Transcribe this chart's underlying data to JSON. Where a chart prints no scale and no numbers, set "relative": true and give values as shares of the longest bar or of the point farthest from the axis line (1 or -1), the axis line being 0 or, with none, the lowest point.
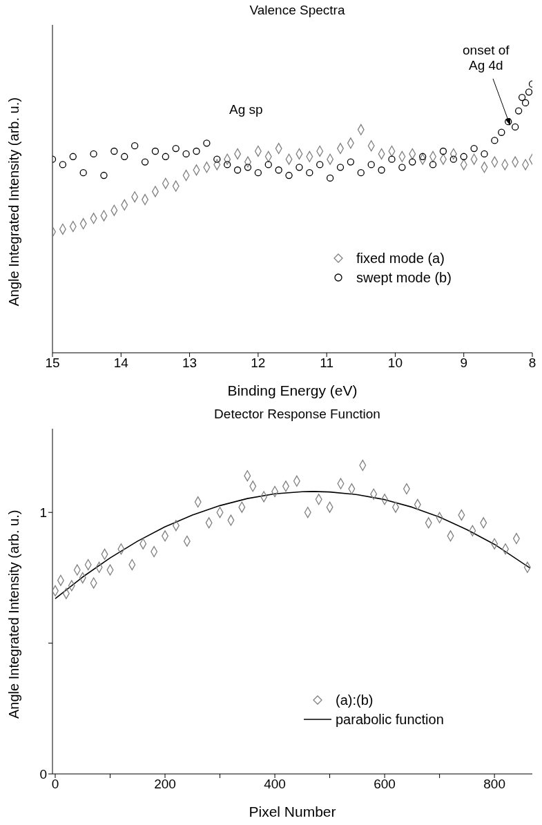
{
  "chart_data": [
    {
      "type": "scatter",
      "title": "Valence Spectra",
      "xlabel": "Binding Energy (eV)",
      "ylabel": "Angle Integrated Intensity (arb. u.)",
      "relative": true,
      "xlim": [
        15,
        8
      ],
      "xticks": [
        15,
        14,
        13,
        12,
        11,
        10,
        9,
        8
      ],
      "legend": "bottom right",
      "annotations": [
        "Ag sp",
        "onset of\nAg 4d"
      ],
      "series": [
        {
          "name": "fixed mode (a)",
          "color": "#808080",
          "marker": "diamond",
          "x": [
            15,
            14.85,
            14.7,
            14.55,
            14.4,
            14.25,
            14.1,
            13.95,
            13.8,
            13.65,
            13.5,
            13.35,
            13.2,
            13.05,
            12.9,
            12.75,
            12.6,
            12.45,
            12.3,
            12.15,
            12,
            11.85,
            11.7,
            11.55,
            11.4,
            11.25,
            11.1,
            10.95,
            10.8,
            10.65,
            10.5,
            10.35,
            10.2,
            10.05,
            9.9,
            9.75,
            9.6,
            9.45,
            9.3,
            9.15,
            9,
            8.85,
            8.7,
            8.55,
            8.4,
            8.25,
            8.1,
            8
          ],
          "values": [
            0.45,
            0.46,
            0.47,
            0.48,
            0.5,
            0.51,
            0.53,
            0.55,
            0.58,
            0.57,
            0.6,
            0.63,
            0.62,
            0.66,
            0.68,
            0.69,
            0.7,
            0.72,
            0.74,
            0.71,
            0.75,
            0.73,
            0.76,
            0.72,
            0.74,
            0.73,
            0.75,
            0.72,
            0.76,
            0.78,
            0.83,
            0.77,
            0.74,
            0.75,
            0.73,
            0.74,
            0.72,
            0.73,
            0.72,
            0.74,
            0.7,
            0.72,
            0.69,
            0.71,
            0.7,
            0.71,
            0.7,
            0.72
          ]
        },
        {
          "name": "swept mode (b)",
          "color": "#000000",
          "marker": "circle",
          "x": [
            15,
            14.85,
            14.7,
            14.55,
            14.4,
            14.25,
            14.1,
            13.95,
            13.8,
            13.65,
            13.5,
            13.35,
            13.2,
            13.05,
            12.9,
            12.75,
            12.6,
            12.45,
            12.3,
            12.15,
            12,
            11.85,
            11.7,
            11.55,
            11.4,
            11.25,
            11.1,
            10.95,
            10.8,
            10.65,
            10.5,
            10.35,
            10.2,
            10.05,
            9.9,
            9.75,
            9.6,
            9.45,
            9.3,
            9.15,
            9,
            8.85,
            8.7,
            8.55,
            8.45,
            8.35,
            8.25,
            8.2,
            8.15,
            8.1,
            8.05,
            8
          ],
          "values": [
            0.72,
            0.7,
            0.73,
            0.67,
            0.74,
            0.66,
            0.75,
            0.73,
            0.77,
            0.71,
            0.75,
            0.73,
            0.76,
            0.74,
            0.75,
            0.78,
            0.72,
            0.7,
            0.68,
            0.69,
            0.67,
            0.7,
            0.68,
            0.66,
            0.69,
            0.67,
            0.7,
            0.65,
            0.69,
            0.71,
            0.67,
            0.7,
            0.68,
            0.72,
            0.69,
            0.71,
            0.73,
            0.7,
            0.75,
            0.72,
            0.73,
            0.76,
            0.74,
            0.79,
            0.82,
            0.86,
            0.84,
            0.9,
            0.95,
            0.93,
            0.97,
            1.0
          ]
        }
      ]
    },
    {
      "type": "scatter",
      "title": "Detector Response Function",
      "xlabel": "Pixel Number",
      "ylabel": "Angle Integrated Intensity (arb. u.)",
      "xlim": [
        -5,
        869
      ],
      "xticks": [
        0,
        {
          "value": 100,
          "label": null
        },
        200,
        {
          "value": 300,
          "label": null
        },
        400,
        {
          "value": 500,
          "label": null
        },
        600,
        {
          "value": 700,
          "label": null
        },
        800
      ],
      "ylim": [
        0,
        1.32
      ],
      "yticks": [
        0,
        {
          "value": 0.5,
          "label": null
        },
        1
      ],
      "legend": "bottom",
      "series": [
        {
          "name": "(a):(b)",
          "color": "#808080",
          "marker": "diamond",
          "x": [
            0,
            10,
            20,
            30,
            40,
            50,
            60,
            70,
            80,
            90,
            100,
            120,
            140,
            160,
            180,
            200,
            220,
            240,
            260,
            280,
            300,
            320,
            340,
            350,
            360,
            380,
            400,
            420,
            440,
            460,
            480,
            500,
            520,
            540,
            560,
            580,
            600,
            620,
            640,
            660,
            680,
            700,
            720,
            740,
            760,
            780,
            800,
            820,
            840,
            860
          ],
          "values": [
            0.7,
            0.74,
            0.69,
            0.72,
            0.78,
            0.75,
            0.8,
            0.73,
            0.79,
            0.84,
            0.78,
            0.86,
            0.8,
            0.88,
            0.85,
            0.91,
            0.95,
            0.89,
            1.04,
            0.96,
            1.0,
            0.97,
            1.02,
            1.14,
            1.1,
            1.06,
            1.08,
            1.1,
            1.12,
            1.0,
            1.05,
            1.02,
            1.11,
            1.09,
            1.18,
            1.07,
            1.05,
            1.02,
            1.09,
            1.03,
            0.96,
            0.98,
            0.91,
            0.99,
            0.93,
            0.96,
            0.88,
            0.86,
            0.9,
            0.79
          ]
        },
        {
          "name": "parabolic function",
          "color": "#000000",
          "type": "line",
          "marker": "none",
          "x": [
            0,
            50,
            100,
            150,
            200,
            250,
            300,
            350,
            400,
            450,
            470,
            500,
            550,
            600,
            650,
            700,
            750,
            800,
            865
          ],
          "values": [
            0.67,
            0.753,
            0.826,
            0.89,
            0.945,
            0.99,
            1.026,
            1.053,
            1.071,
            1.079,
            1.08,
            1.078,
            1.068,
            1.049,
            1.02,
            0.982,
            0.934,
            0.878,
            0.787
          ]
        }
      ]
    }
  ]
}
